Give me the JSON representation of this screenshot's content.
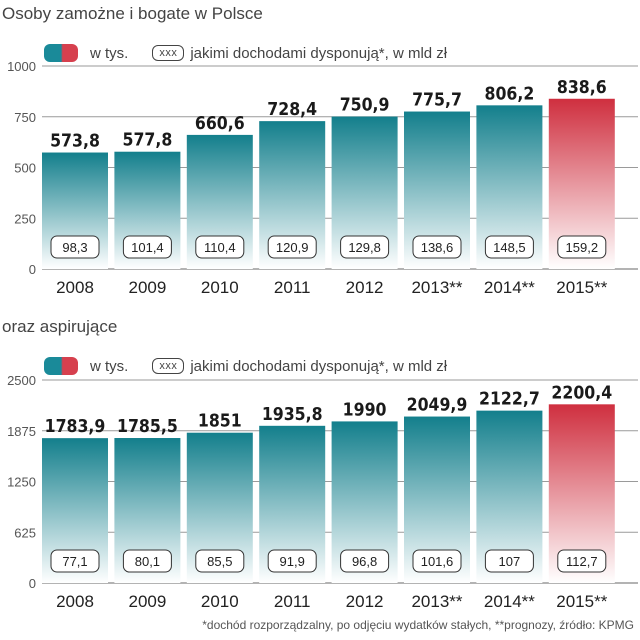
{
  "chart_data": [
    {
      "type": "bar",
      "title": "Osoby zamożne i bogate w Polsce",
      "legend": {
        "bar_label": "w tys.",
        "box_sample": "xxx",
        "box_label": "jakimi dochodami dysponują*, w mld zł"
      },
      "categories": [
        "2008",
        "2009",
        "2010",
        "2011",
        "2012",
        "2013**",
        "2014**",
        "2015**"
      ],
      "values": [
        573.8,
        577.8,
        660.6,
        728.4,
        750.9,
        775.7,
        806.2,
        838.6
      ],
      "value_labels": [
        "573,8",
        "577,8",
        "660,6",
        "728,4",
        "750,9",
        "775,7",
        "806,2",
        "838,6"
      ],
      "inner_values": [
        98.3,
        101.4,
        110.4,
        120.9,
        129.8,
        138.6,
        148.5,
        159.2
      ],
      "inner_labels": [
        "98,3",
        "101,4",
        "110,4",
        "120,9",
        "129,8",
        "138,6",
        "148,5",
        "159,2"
      ],
      "yticks": [
        0,
        250,
        500,
        750,
        1000
      ],
      "ylim": [
        0,
        1000
      ],
      "highlight_last": true
    },
    {
      "type": "bar",
      "title": "oraz aspirujące",
      "legend": {
        "bar_label": "w tys.",
        "box_sample": "xxx",
        "box_label": "jakimi dochodami dysponują*, w mld zł"
      },
      "categories": [
        "2008",
        "2009",
        "2010",
        "2011",
        "2012",
        "2013**",
        "2014**",
        "2015**"
      ],
      "values": [
        1783.9,
        1785.5,
        1851,
        1935.8,
        1990,
        2049.9,
        2122.7,
        2200.4
      ],
      "value_labels": [
        "1783,9",
        "1785,5",
        "1851",
        "1935,8",
        "1990",
        "2049,9",
        "2122,7",
        "2200,4"
      ],
      "inner_values": [
        77.1,
        80.1,
        85.5,
        91.9,
        96.8,
        101.6,
        107,
        112.7
      ],
      "inner_labels": [
        "77,1",
        "80,1",
        "85,5",
        "91,9",
        "96,8",
        "101,6",
        "107",
        "112,7"
      ],
      "yticks": [
        0,
        625,
        1250,
        1875,
        2500
      ],
      "ylim": [
        0,
        2500
      ],
      "highlight_last": true
    }
  ],
  "footnote": "*dochód rozporządzalny, po odjęciu wydatków stałych, **prognozy, źródło: KPMG",
  "colors": {
    "bar_top": "#137f8c",
    "bar_bottom": "#ffffff",
    "highlight_top": "#cf2f3f",
    "highlight_bottom": "#ffffff",
    "grid": "#9a9a9a"
  }
}
